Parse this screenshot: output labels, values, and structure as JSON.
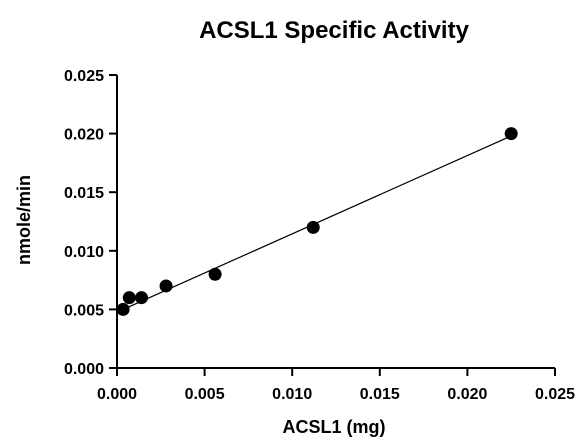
{
  "chart_data": {
    "type": "scatter",
    "title": "ACSL1 Specific Activity",
    "xlabel": "ACSL1  (mg)",
    "ylabel": "nmole/min",
    "xlim": [
      0.0,
      0.025
    ],
    "ylim": [
      0.0,
      0.025
    ],
    "x_ticks": [
      "0.000",
      "0.005",
      "0.010",
      "0.015",
      "0.020",
      "0.025"
    ],
    "y_ticks": [
      "0.000",
      "0.005",
      "0.010",
      "0.015",
      "0.020",
      "0.025"
    ],
    "series": [
      {
        "points": [
          {
            "x": 0.00035,
            "y": 0.005
          },
          {
            "x": 0.0007,
            "y": 0.006
          },
          {
            "x": 0.0014,
            "y": 0.006
          },
          {
            "x": 0.0028,
            "y": 0.007
          },
          {
            "x": 0.0056,
            "y": 0.008
          },
          {
            "x": 0.0112,
            "y": 0.012
          },
          {
            "x": 0.0225,
            "y": 0.02
          }
        ],
        "fit_line": {
          "type": "linear",
          "x_start": 0.00035,
          "y_start": 0.005,
          "x_end": 0.0225,
          "y_end": 0.0198
        }
      }
    ],
    "grid": false,
    "legend": "none"
  }
}
